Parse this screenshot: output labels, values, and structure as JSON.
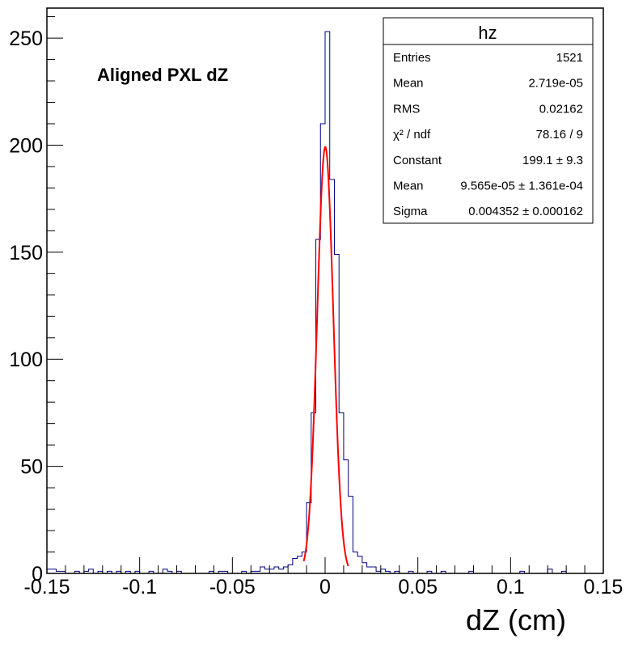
{
  "chart_data": {
    "type": "histogram",
    "title": "Aligned PXL dZ",
    "xlabel": "dZ (cm)",
    "ylabel": "",
    "xlim": [
      -0.15,
      0.15
    ],
    "ylim": [
      0,
      264
    ],
    "x_ticks": [
      "-0.15",
      "-0.1",
      "-0.05",
      "0",
      "0.05",
      "0.1",
      "0.15"
    ],
    "y_ticks": [
      "0",
      "50",
      "100",
      "150",
      "200",
      "250"
    ],
    "bin_width": 0.0025,
    "bins_low_edges": [
      -0.15,
      -0.1475,
      -0.145,
      -0.1425,
      -0.14,
      -0.1375,
      -0.135,
      -0.1325,
      -0.13,
      -0.1275,
      -0.125,
      -0.1225,
      -0.12,
      -0.1175,
      -0.115,
      -0.1125,
      -0.11,
      -0.1075,
      -0.105,
      -0.1025,
      -0.1,
      -0.0975,
      -0.095,
      -0.0925,
      -0.09,
      -0.0875,
      -0.085,
      -0.0825,
      -0.08,
      -0.0775,
      -0.075,
      -0.0725,
      -0.07,
      -0.0675,
      -0.065,
      -0.0625,
      -0.06,
      -0.0575,
      -0.055,
      -0.0525,
      -0.05,
      -0.0475,
      -0.045,
      -0.0425,
      -0.04,
      -0.0375,
      -0.035,
      -0.0325,
      -0.03,
      -0.0275,
      -0.025,
      -0.0225,
      -0.02,
      -0.0175,
      -0.015,
      -0.0125,
      -0.01,
      -0.0075,
      -0.005,
      -0.0025,
      0.0,
      0.0025,
      0.005,
      0.0075,
      0.01,
      0.0125,
      0.015,
      0.0175,
      0.02,
      0.0225,
      0.025,
      0.0275,
      0.03,
      0.0325,
      0.035,
      0.0375,
      0.04,
      0.0425,
      0.045,
      0.0475,
      0.05,
      0.0525,
      0.055,
      0.0575,
      0.06,
      0.0625,
      0.065,
      0.0675,
      0.07,
      0.0725,
      0.075,
      0.0775,
      0.08,
      0.0825,
      0.085,
      0.0875,
      0.09,
      0.0925,
      0.095,
      0.0975,
      0.1,
      0.1025,
      0.105,
      0.1075,
      0.11,
      0.1125,
      0.115,
      0.1175,
      0.12,
      0.1225,
      0.125,
      0.1275,
      0.13,
      0.1325,
      0.135,
      0.1375,
      0.14,
      0.1425,
      0.145,
      0.1475
    ],
    "values": [
      2,
      2,
      1,
      1,
      0,
      0,
      1,
      0,
      1,
      2,
      0,
      1,
      0,
      1,
      0,
      1,
      0,
      1,
      0,
      1,
      0,
      0,
      1,
      0,
      0,
      2,
      1,
      0,
      1,
      0,
      0,
      0,
      0,
      0,
      0,
      1,
      0,
      1,
      1,
      0,
      0,
      0,
      1,
      0,
      1,
      1,
      3,
      2,
      2,
      3,
      2,
      3,
      4,
      7,
      8,
      10,
      33,
      75,
      156,
      210,
      253,
      184,
      149,
      75,
      53,
      36,
      10,
      8,
      5,
      3,
      3,
      1,
      2,
      1,
      0,
      1,
      0,
      0,
      1,
      0,
      0,
      0,
      1,
      0,
      0,
      1,
      0,
      0,
      0,
      0,
      0,
      1,
      0,
      0,
      0,
      0,
      0,
      0,
      0,
      0,
      0,
      0,
      1,
      0,
      0,
      0,
      0,
      0,
      2,
      0,
      0,
      1,
      0,
      0,
      0,
      0,
      0,
      0,
      0,
      0
    ],
    "fit": {
      "name": "gaus",
      "constant": 199.1,
      "mean": 9.565e-05,
      "sigma": 0.004352,
      "x_range": [
        -0.0115,
        0.0125
      ]
    },
    "colors": {
      "histogram": "#000080",
      "fit": "#ff0000",
      "axes": "#000000"
    }
  },
  "stats_box": {
    "title": "hz",
    "rows": [
      {
        "label": "Entries",
        "value": "1521"
      },
      {
        "label": "Mean",
        "value": "2.719e-05"
      },
      {
        "label": "RMS",
        "value": "0.02162"
      },
      {
        "label": "χ² / ndf",
        "value": "78.16 / 9"
      },
      {
        "label": "Constant",
        "value": "199.1 ± 9.3"
      },
      {
        "label": "Mean",
        "value": "9.565e-05 ± 1.361e-04"
      },
      {
        "label": "Sigma",
        "value": "0.004352 ± 0.000162"
      }
    ]
  }
}
